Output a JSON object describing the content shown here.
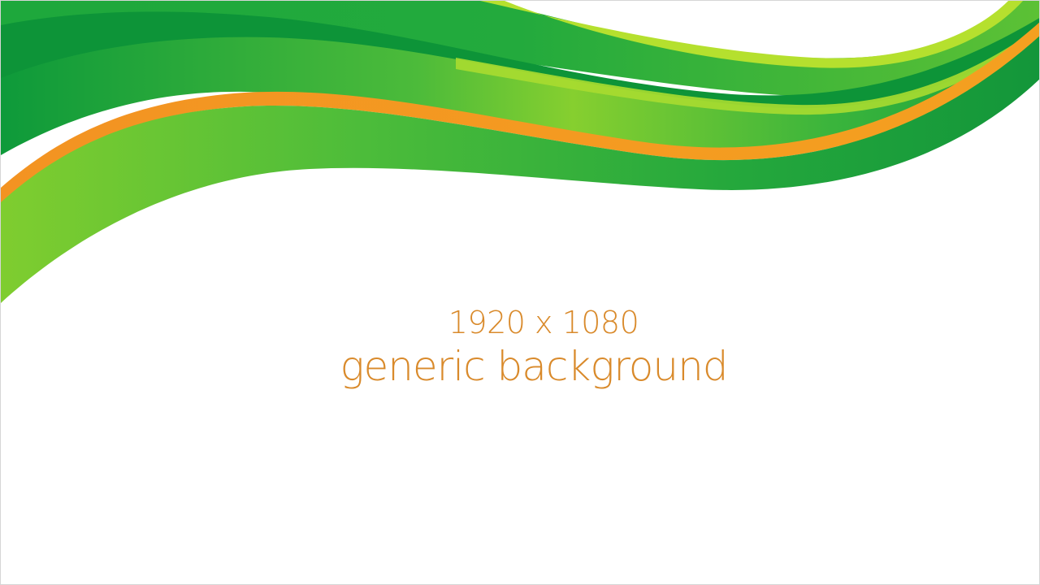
{
  "slide": {
    "size_text": "1920 x 1080",
    "title_text": "generic background",
    "text_color": "#d98a2b"
  },
  "palette": {
    "dark_green": "#0d9438",
    "green": "#1ea83c",
    "mid_green": "#3db83f",
    "light_green": "#7fcd2f",
    "lime": "#b5e02e",
    "orange": "#f39322"
  }
}
